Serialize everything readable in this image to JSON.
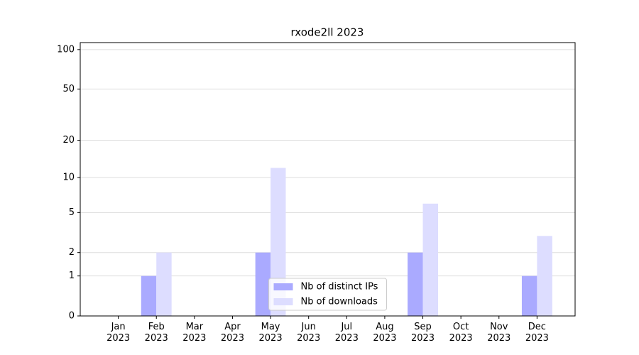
{
  "chart_data": {
    "type": "bar",
    "title": "rxode2ll 2023",
    "categories": [
      "Jan\n2023",
      "Feb\n2023",
      "Mar\n2023",
      "Apr\n2023",
      "May\n2023",
      "Jun\n2023",
      "Jul\n2023",
      "Aug\n2023",
      "Sep\n2023",
      "Oct\n2023",
      "Nov\n2023",
      "Dec\n2023"
    ],
    "series": [
      {
        "name": "Nb of distinct IPs",
        "color": "#aaaaff",
        "values": [
          0,
          1,
          0,
          0,
          2,
          0,
          0,
          0,
          2,
          0,
          0,
          1
        ]
      },
      {
        "name": "Nb of downloads",
        "color": "#ddddff",
        "values": [
          0,
          2,
          0,
          0,
          12,
          0,
          0,
          0,
          6,
          0,
          0,
          3
        ]
      }
    ],
    "yscale": "log1p",
    "ylim": [
      0,
      113
    ],
    "yticks": [
      0,
      1,
      2,
      5,
      10,
      20,
      50,
      100
    ],
    "grid": true,
    "legend": "lower center"
  }
}
